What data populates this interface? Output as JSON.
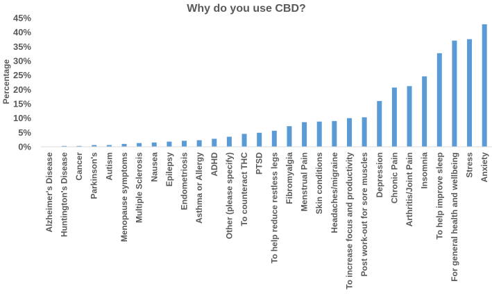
{
  "chart_data": {
    "type": "bar",
    "title": "Why do you use CBD?",
    "xlabel": "",
    "ylabel": "Percentage",
    "ylim": [
      0,
      45
    ],
    "yticks": [
      "0%",
      "5%",
      "10%",
      "15%",
      "20%",
      "25%",
      "30%",
      "35%",
      "40%",
      "45%"
    ],
    "grid": false,
    "bar_color": "#5b9bd5",
    "categories": [
      "Alzheimer's Disease",
      "Huntington's Disease",
      "Cancer",
      "Parkinson's",
      "Autism",
      "Menopause symptoms",
      "Multiple Sclerosis",
      "Nausea",
      "Epilepsy",
      "Endometriosis",
      "Asthma or Allergy",
      "ADHD",
      "Other (please specify)",
      "To counteract THC",
      "PTSD",
      "To help reduce restless legs",
      "Fibromyalgia",
      "Menstrual Pain",
      "Skin conditions",
      "Headaches/migraine",
      "To increase focus and productivity",
      "Post work-out for sore muscles",
      "Depression",
      "Chronic Pain",
      "Arthritis/Joint Pain",
      "Insomnia",
      "To help improve sleep",
      "For general health and wellbeing",
      "Stress",
      "Anxiety"
    ],
    "values": [
      0.1,
      0.3,
      0.3,
      0.6,
      0.6,
      1.0,
      1.3,
      1.5,
      1.8,
      2.1,
      2.3,
      2.8,
      3.5,
      4.5,
      4.9,
      5.6,
      7.2,
      8.6,
      8.8,
      9.0,
      10.0,
      10.3,
      16.0,
      20.7,
      21.2,
      24.6,
      32.7,
      37.1,
      37.6,
      42.8
    ]
  }
}
